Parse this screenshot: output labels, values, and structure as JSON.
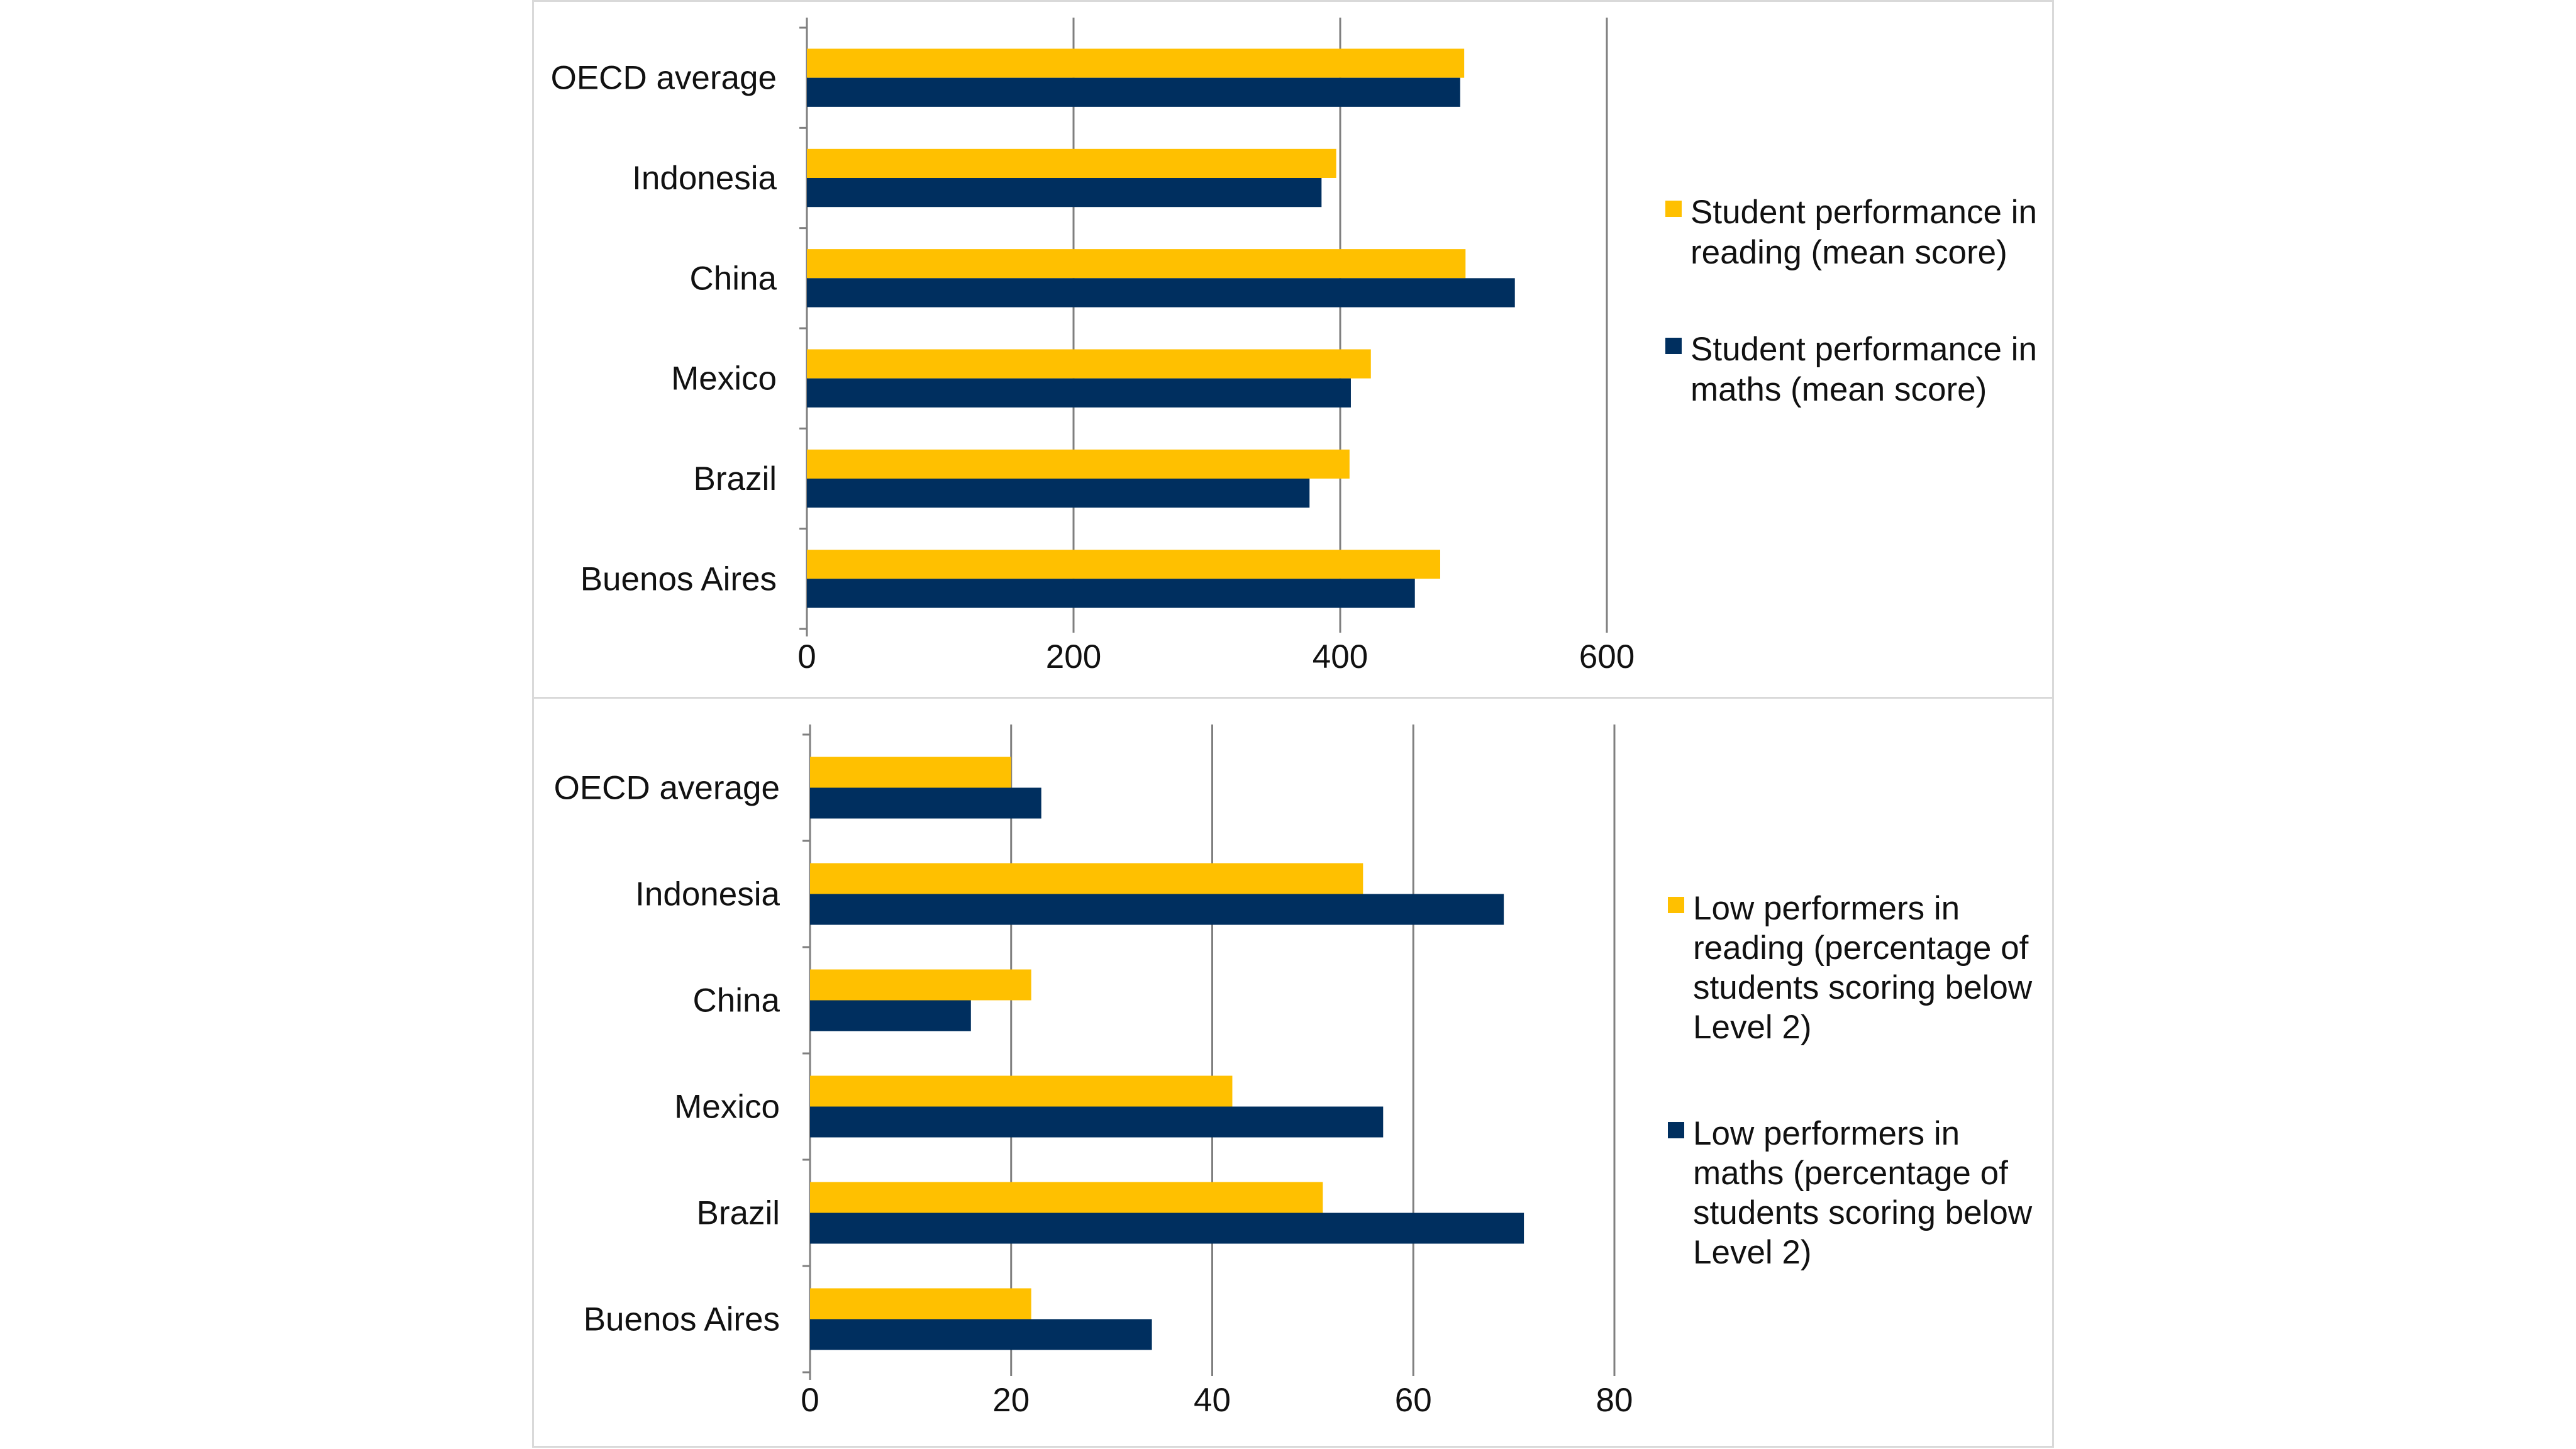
{
  "colors": {
    "reading": "#FFC000",
    "maths": "#002F5F",
    "grid": "#7f7f7f",
    "axis": "#7f7f7f"
  },
  "chart_data": [
    {
      "type": "bar",
      "orientation": "horizontal",
      "categories": [
        "OECD average",
        "Indonesia",
        "China",
        "Mexico",
        "Brazil",
        "Buenos Aires"
      ],
      "series": [
        {
          "name": "Student performance in reading (mean score)",
          "color": "#FFC000",
          "values": [
            493,
            397,
            494,
            423,
            407,
            475
          ]
        },
        {
          "name": "Student performance in maths (mean score)",
          "color": "#002F5F",
          "values": [
            490,
            386,
            531,
            408,
            377,
            456
          ]
        }
      ],
      "xlim": [
        0,
        600
      ],
      "xticks": [
        "0",
        "200",
        "400",
        "600"
      ],
      "grid": true,
      "legend_position": "right"
    },
    {
      "type": "bar",
      "orientation": "horizontal",
      "categories": [
        "OECD average",
        "Indonesia",
        "China",
        "Mexico",
        "Brazil",
        "Buenos Aires"
      ],
      "series": [
        {
          "name": "Low performers in reading (percentage of students scoring below Level 2)",
          "color": "#FFC000",
          "values": [
            20,
            55,
            22,
            42,
            51,
            22
          ]
        },
        {
          "name": "Low performers in maths (percentage of students scoring below Level 2)",
          "color": "#002F5F",
          "values": [
            23,
            69,
            16,
            57,
            71,
            34
          ]
        }
      ],
      "xlim": [
        0,
        80
      ],
      "xticks": [
        "0",
        "20",
        "40",
        "60",
        "80"
      ],
      "grid": true,
      "legend_position": "right"
    }
  ],
  "legends": [
    [
      {
        "lines": [
          "Student performance in",
          "reading (mean score)"
        ]
      },
      {
        "lines": [
          "Student performance in",
          "maths (mean score)"
        ]
      }
    ],
    [
      {
        "lines": [
          "Low performers in",
          "reading (percentage of",
          "students scoring below",
          "Level 2)"
        ]
      },
      {
        "lines": [
          "Low performers in",
          "maths (percentage of",
          "students scoring below",
          "Level 2)"
        ]
      }
    ]
  ]
}
